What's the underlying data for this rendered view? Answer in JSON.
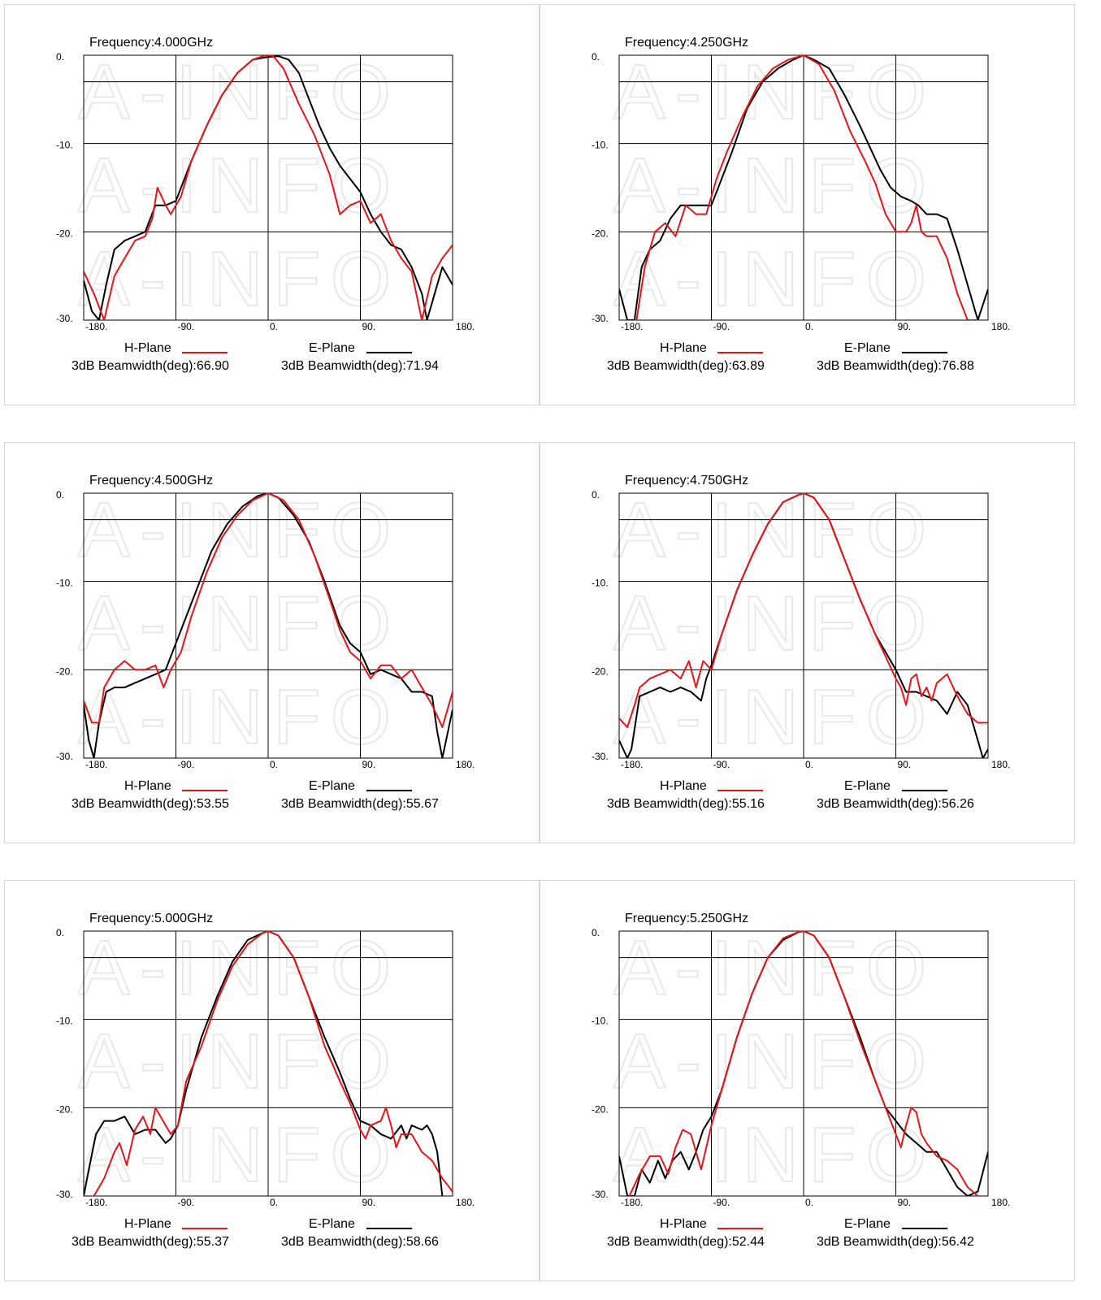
{
  "colors": {
    "h_plane": "#e8141b",
    "e_plane": "#000000",
    "grid": "#000000",
    "watermark": "#e9e9e9",
    "border": "#d6d6d6"
  },
  "watermark_text": "A-INFO",
  "legend": {
    "h_label": "H-Plane",
    "e_label": "E-Plane",
    "bw_prefix": "3dB Beamwidth(deg):"
  },
  "chart_data": [
    {
      "type": "line",
      "title": "Frequency:4.000GHz",
      "xlim": [
        -180,
        180
      ],
      "ylim": [
        -30,
        0
      ],
      "xticks": [
        "-180.",
        "-90.",
        "0.",
        "90.",
        "180."
      ],
      "yticks": [
        "0.",
        "-10.",
        "-20.",
        "-30."
      ],
      "grid": true,
      "series": [
        {
          "name": "H-Plane",
          "beamwidth_text": "3dB Beamwidth(deg):66.90",
          "x": [
            -180,
            -170,
            -160,
            -150,
            -140,
            -130,
            -120,
            -113,
            -108,
            -100,
            -95,
            -85,
            -75,
            -60,
            -45,
            -30,
            -15,
            -5,
            0,
            5,
            15,
            30,
            45,
            60,
            70,
            80,
            90,
            100,
            110,
            120,
            130,
            140,
            150,
            160,
            170,
            180
          ],
          "y": [
            -24.5,
            -27,
            -30,
            -25,
            -23,
            -21,
            -20.5,
            -18.5,
            -15,
            -17,
            -18,
            -16,
            -12,
            -8,
            -4.5,
            -2,
            -0.5,
            -0.1,
            0,
            -0.1,
            -1.5,
            -5.5,
            -9,
            -13.5,
            -18,
            -17,
            -16.5,
            -19,
            -18,
            -21,
            -23,
            -24.5,
            -30,
            -25,
            -23,
            -21.5
          ]
        },
        {
          "name": "E-Plane",
          "beamwidth_text": "3dB Beamwidth(deg):71.94",
          "x": [
            -180,
            -172,
            -165,
            -158,
            -150,
            -140,
            -130,
            -120,
            -110,
            -100,
            -90,
            -75,
            -60,
            -45,
            -30,
            -15,
            0,
            10,
            20,
            30,
            40,
            50,
            60,
            70,
            80,
            90,
            100,
            110,
            120,
            130,
            140,
            150,
            155,
            160,
            170,
            180
          ],
          "y": [
            -25.5,
            -29,
            -30,
            -26,
            -22,
            -21,
            -20.5,
            -20,
            -17,
            -17,
            -16.5,
            -12,
            -8,
            -4.5,
            -2,
            -0.5,
            -0.2,
            -0.1,
            -0.5,
            -2,
            -5,
            -8,
            -10.5,
            -12.5,
            -14,
            -15.5,
            -18,
            -20,
            -21.5,
            -22,
            -24,
            -27,
            -30,
            -28,
            -24,
            -26
          ]
        }
      ]
    },
    {
      "type": "line",
      "title": "Frequency:4.250GHz",
      "xlim": [
        -180,
        180
      ],
      "ylim": [
        -30,
        0
      ],
      "xticks": [
        "-180.",
        "-90.",
        "0.",
        "90.",
        "180."
      ],
      "yticks": [
        "0.",
        "-10.",
        "-20.",
        "-30."
      ],
      "grid": true,
      "series": [
        {
          "name": "H-Plane",
          "beamwidth_text": "3dB Beamwidth(deg):63.89",
          "x": [
            -163,
            -155,
            -145,
            -135,
            -125,
            -115,
            -105,
            -95,
            -85,
            -75,
            -60,
            -45,
            -30,
            -15,
            0,
            15,
            30,
            45,
            60,
            70,
            80,
            90,
            95,
            100,
            105,
            110,
            115,
            120,
            130,
            140,
            150,
            160,
            170
          ],
          "y": [
            -30,
            -24,
            -20,
            -19,
            -20.5,
            -17,
            -18,
            -18,
            -14,
            -11,
            -7,
            -3.5,
            -1.5,
            -0.5,
            0,
            -1,
            -4,
            -8.5,
            -12,
            -14.5,
            -18,
            -20,
            -20,
            -20,
            -19,
            -17,
            -20,
            -20.5,
            -20.5,
            -23,
            -27,
            -30,
            -30
          ]
        },
        {
          "name": "E-Plane",
          "beamwidth_text": "3dB Beamwidth(deg):76.88",
          "x": [
            -180,
            -172,
            -165,
            -158,
            -150,
            -140,
            -130,
            -120,
            -110,
            -100,
            -90,
            -80,
            -70,
            -55,
            -40,
            -25,
            -10,
            0,
            10,
            25,
            40,
            55,
            65,
            75,
            85,
            95,
            105,
            112,
            120,
            130,
            140,
            150,
            160,
            170,
            180
          ],
          "y": [
            -26.5,
            -30,
            -30,
            -24,
            -22,
            -21,
            -18.5,
            -17,
            -17,
            -17,
            -17,
            -14,
            -11,
            -6,
            -3,
            -1.5,
            -0.5,
            0,
            -0.5,
            -1.5,
            -4.5,
            -8,
            -10.5,
            -13,
            -15,
            -16,
            -16.5,
            -17,
            -18,
            -18,
            -18.5,
            -22,
            -26,
            -30,
            -26.5
          ]
        }
      ]
    },
    {
      "type": "line",
      "title": "Frequency:4.500GHz",
      "xlim": [
        -180,
        180
      ],
      "ylim": [
        -30,
        0
      ],
      "xticks": [
        "-180.",
        "-90.",
        "0.",
        "90.",
        "180."
      ],
      "yticks": [
        "0.",
        "-10.",
        "-20.",
        "-30."
      ],
      "grid": true,
      "series": [
        {
          "name": "H-Plane",
          "beamwidth_text": "3dB Beamwidth(deg):53.55",
          "x": [
            -180,
            -172,
            -165,
            -160,
            -150,
            -140,
            -130,
            -120,
            -110,
            -102,
            -95,
            -85,
            -75,
            -60,
            -45,
            -30,
            -15,
            0,
            15,
            30,
            45,
            60,
            70,
            80,
            90,
            100,
            110,
            120,
            130,
            140,
            150,
            160,
            170,
            180
          ],
          "y": [
            -23.5,
            -26,
            -26,
            -22,
            -20,
            -19,
            -20,
            -20,
            -19.5,
            -22,
            -20,
            -18,
            -14,
            -9,
            -5,
            -2.5,
            -0.8,
            0,
            -0.8,
            -3,
            -7,
            -12,
            -15.5,
            -18,
            -19,
            -21,
            -19.5,
            -19.5,
            -21,
            -20,
            -22,
            -24,
            -26.5,
            -22.5
          ]
        },
        {
          "name": "E-Plane",
          "beamwidth_text": "3dB Beamwidth(deg):55.67",
          "x": [
            -180,
            -175,
            -170,
            -165,
            -158,
            -150,
            -140,
            -130,
            -120,
            -110,
            -100,
            -90,
            -80,
            -70,
            -55,
            -40,
            -25,
            -10,
            0,
            10,
            25,
            40,
            55,
            70,
            80,
            90,
            100,
            110,
            120,
            130,
            140,
            150,
            160,
            165,
            170,
            180
          ],
          "y": [
            -24,
            -28,
            -30,
            -26,
            -22.5,
            -22,
            -22,
            -21.5,
            -21,
            -20.5,
            -20,
            -17,
            -14,
            -11,
            -6.5,
            -3.5,
            -1.5,
            -0.3,
            0,
            -0.5,
            -2.5,
            -5.5,
            -10,
            -15,
            -17,
            -18,
            -20.5,
            -20,
            -20.5,
            -21,
            -22.5,
            -22.5,
            -23,
            -27,
            -30,
            -24.5
          ]
        }
      ]
    },
    {
      "type": "line",
      "title": "Frequency:4.750GHz",
      "xlim": [
        -180,
        180
      ],
      "ylim": [
        -30,
        0
      ],
      "xticks": [
        "-180.",
        "-90.",
        "0.",
        "90.",
        "180."
      ],
      "yticks": [
        "0.",
        "-10.",
        "-20.",
        "-30."
      ],
      "grid": true,
      "series": [
        {
          "name": "H-Plane",
          "beamwidth_text": "3dB Beamwidth(deg):55.16",
          "x": [
            -180,
            -172,
            -165,
            -160,
            -150,
            -140,
            -130,
            -120,
            -112,
            -105,
            -98,
            -90,
            -80,
            -65,
            -50,
            -35,
            -20,
            -5,
            0,
            10,
            25,
            40,
            55,
            70,
            80,
            90,
            95,
            100,
            105,
            110,
            115,
            120,
            125,
            130,
            140,
            150,
            160,
            170,
            180
          ],
          "y": [
            -25.5,
            -26.5,
            -24,
            -22,
            -21,
            -20.5,
            -20,
            -21,
            -19,
            -22,
            -19,
            -20,
            -16,
            -11,
            -7,
            -3.5,
            -1,
            -0.2,
            0,
            -0.5,
            -3,
            -7.5,
            -12,
            -16,
            -18.5,
            -21,
            -22,
            -24,
            -21,
            -20.5,
            -23,
            -22,
            -23.5,
            -21.5,
            -20.5,
            -23,
            -25,
            -26,
            -26
          ]
        },
        {
          "name": "E-Plane",
          "beamwidth_text": "3dB Beamwidth(deg):56.26",
          "x": [
            -180,
            -172,
            -168,
            -160,
            -150,
            -140,
            -130,
            -120,
            -110,
            -100,
            -95,
            -90,
            -80,
            -65,
            -50,
            -35,
            -20,
            -5,
            0,
            10,
            25,
            40,
            55,
            70,
            80,
            90,
            100,
            110,
            120,
            130,
            140,
            150,
            160,
            170,
            175,
            180
          ],
          "y": [
            -28,
            -30,
            -29,
            -23,
            -22.5,
            -22,
            -22.5,
            -22,
            -22.5,
            -23.5,
            -21,
            -19.5,
            -16,
            -11,
            -7,
            -3.5,
            -1,
            -0.2,
            0,
            -0.5,
            -3,
            -7.5,
            -12,
            -16,
            -18,
            -20,
            -22.5,
            -22.5,
            -23,
            -23.5,
            -25,
            -22.5,
            -24,
            -28,
            -30,
            -29
          ]
        }
      ]
    },
    {
      "type": "line",
      "title": "Frequency:5.000GHz",
      "xlim": [
        -180,
        180
      ],
      "ylim": [
        -30,
        0
      ],
      "xticks": [
        "-180.",
        "-90.",
        "0.",
        "90.",
        "180."
      ],
      "yticks": [
        "0.",
        "-10.",
        "-20.",
        "-30."
      ],
      "grid": true,
      "series": [
        {
          "name": "H-Plane",
          "beamwidth_text": "3dB Beamwidth(deg):55.37",
          "x": [
            -170,
            -160,
            -150,
            -145,
            -138,
            -130,
            -122,
            -115,
            -110,
            -100,
            -95,
            -88,
            -80,
            -65,
            -50,
            -35,
            -20,
            -5,
            0,
            10,
            25,
            40,
            55,
            70,
            80,
            90,
            95,
            100,
            110,
            115,
            120,
            125,
            130,
            140,
            150,
            160,
            170,
            180
          ],
          "y": [
            -30,
            -28,
            -25,
            -24,
            -26.5,
            -22.5,
            -21,
            -23,
            -20,
            -22,
            -23,
            -22,
            -17,
            -13,
            -8,
            -4,
            -1.5,
            -0.2,
            0,
            -0.5,
            -3,
            -7.5,
            -13,
            -17,
            -19.5,
            -22.5,
            -23.5,
            -22,
            -21.5,
            -20,
            -22,
            -24.5,
            -23,
            -23,
            -25,
            -26,
            -28,
            -29.5
          ]
        },
        {
          "name": "E-Plane",
          "beamwidth_text": "3dB Beamwidth(deg):58.66",
          "x": [
            -180,
            -175,
            -168,
            -160,
            -150,
            -140,
            -130,
            -120,
            -110,
            -100,
            -95,
            -88,
            -80,
            -65,
            -50,
            -35,
            -20,
            -5,
            0,
            10,
            25,
            40,
            55,
            70,
            80,
            90,
            100,
            110,
            120,
            130,
            135,
            140,
            150,
            155,
            160,
            165,
            170
          ],
          "y": [
            -30,
            -27,
            -23,
            -21.5,
            -21.5,
            -21,
            -23,
            -22.5,
            -22.5,
            -24,
            -23.5,
            -22,
            -18,
            -12,
            -7.5,
            -3.5,
            -1,
            -0.2,
            0,
            -0.5,
            -3,
            -7.5,
            -12,
            -16,
            -19,
            -21.5,
            -22,
            -23,
            -23.5,
            -22,
            -23.5,
            -22,
            -22.5,
            -22,
            -23,
            -25,
            -30
          ]
        }
      ]
    },
    {
      "type": "line",
      "title": "Frequency:5.250GHz",
      "xlim": [
        -180,
        180
      ],
      "ylim": [
        -30,
        0
      ],
      "xticks": [
        "-180.",
        "-90.",
        "0.",
        "90.",
        "180."
      ],
      "yticks": [
        "0.",
        "-10.",
        "-20.",
        "-30."
      ],
      "grid": true,
      "series": [
        {
          "name": "H-Plane",
          "beamwidth_text": "3dB Beamwidth(deg):52.44",
          "x": [
            -170,
            -160,
            -150,
            -140,
            -132,
            -125,
            -118,
            -110,
            -100,
            -90,
            -80,
            -65,
            -50,
            -35,
            -20,
            -5,
            0,
            10,
            25,
            40,
            55,
            70,
            80,
            90,
            95,
            100,
            105,
            110,
            115,
            120,
            130,
            140,
            150,
            160,
            170
          ],
          "y": [
            -30,
            -27.5,
            -25.5,
            -25.5,
            -27.5,
            -24.5,
            -22.5,
            -23,
            -27,
            -22,
            -18,
            -12,
            -7,
            -3,
            -0.8,
            -0.1,
            0,
            -0.5,
            -3,
            -7.5,
            -12.5,
            -17,
            -20,
            -23,
            -24.5,
            -22,
            -20,
            -20.5,
            -23,
            -24,
            -25.5,
            -26,
            -27,
            -29,
            -30
          ]
        },
        {
          "name": "E-Plane",
          "beamwidth_text": "3dB Beamwidth(deg):56.42",
          "x": [
            -180,
            -172,
            -165,
            -158,
            -150,
            -142,
            -135,
            -128,
            -120,
            -112,
            -105,
            -98,
            -90,
            -80,
            -65,
            -50,
            -35,
            -20,
            -5,
            0,
            10,
            25,
            40,
            55,
            70,
            80,
            90,
            100,
            110,
            120,
            130,
            140,
            150,
            160,
            170,
            180
          ],
          "y": [
            -25.5,
            -30,
            -30,
            -27,
            -28.5,
            -26,
            -28,
            -26,
            -25,
            -27,
            -25,
            -22.5,
            -21,
            -18,
            -12,
            -7,
            -3,
            -1,
            -0.1,
            0,
            -0.5,
            -3,
            -7.5,
            -12,
            -17,
            -20,
            -21.5,
            -23,
            -24,
            -25,
            -25,
            -27,
            -29,
            -30,
            -29.5,
            -25
          ]
        }
      ]
    }
  ]
}
